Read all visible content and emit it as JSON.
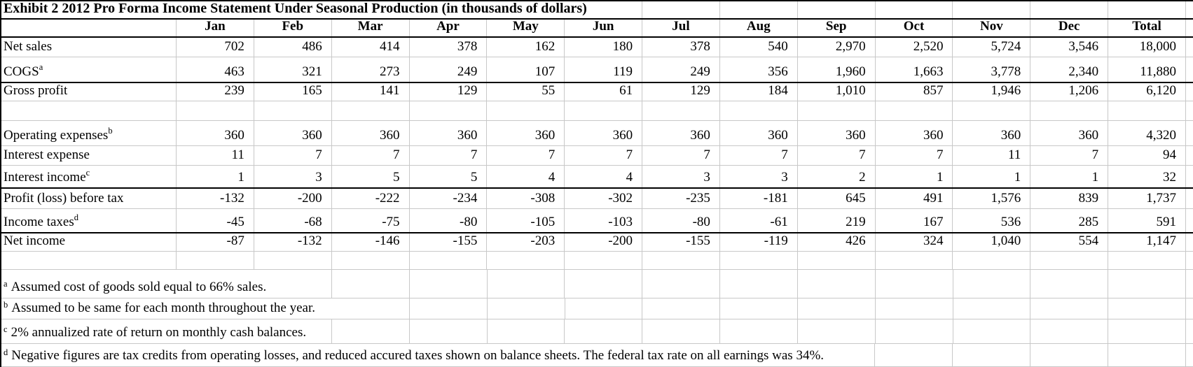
{
  "title": "Exhibit 2 2012 Pro Forma Income Statement Under Seasonal Production (in thousands of dollars)",
  "columns": [
    "Jan",
    "Feb",
    "Mar",
    "Apr",
    "May",
    "Jun",
    "Jul",
    "Aug",
    "Sep",
    "Oct",
    "Nov",
    "Dec",
    "Total"
  ],
  "rows": [
    {
      "label": "Net sales",
      "sup": "",
      "values": [
        "702",
        "486",
        "414",
        "378",
        "162",
        "180",
        "378",
        "540",
        "2,970",
        "2,520",
        "5,724",
        "3,546",
        "18,000"
      ]
    },
    {
      "label": "COGS",
      "sup": "a",
      "values": [
        "463",
        "321",
        "273",
        "249",
        "107",
        "119",
        "249",
        "356",
        "1,960",
        "1,663",
        "3,778",
        "2,340",
        "11,880"
      ]
    },
    {
      "label": "Gross profit",
      "sup": "",
      "values": [
        "239",
        "165",
        "141",
        "129",
        "55",
        "61",
        "129",
        "184",
        "1,010",
        "857",
        "1,946",
        "1,206",
        "6,120"
      ]
    },
    {
      "blank": true
    },
    {
      "label": "Operating expenses",
      "sup": "b",
      "values": [
        "360",
        "360",
        "360",
        "360",
        "360",
        "360",
        "360",
        "360",
        "360",
        "360",
        "360",
        "360",
        "4,320"
      ]
    },
    {
      "label": "Interest expense",
      "sup": "",
      "values": [
        "11",
        "7",
        "7",
        "7",
        "7",
        "7",
        "7",
        "7",
        "7",
        "7",
        "11",
        "7",
        "94"
      ]
    },
    {
      "label": "Interest income",
      "sup": "c",
      "values": [
        "1",
        "3",
        "5",
        "5",
        "4",
        "4",
        "3",
        "3",
        "2",
        "1",
        "1",
        "1",
        "32"
      ]
    },
    {
      "label": "Profit (loss) before tax",
      "sup": "",
      "values": [
        "-132",
        "-200",
        "-222",
        "-234",
        "-308",
        "-302",
        "-235",
        "-181",
        "645",
        "491",
        "1,576",
        "839",
        "1,737"
      ]
    },
    {
      "label": "Income taxes",
      "sup": "d",
      "values": [
        "-45",
        "-68",
        "-75",
        "-80",
        "-105",
        "-103",
        "-80",
        "-61",
        "219",
        "167",
        "536",
        "285",
        "591"
      ]
    },
    {
      "label": "Net income",
      "sup": "",
      "values": [
        "-87",
        "-132",
        "-146",
        "-155",
        "-203",
        "-200",
        "-155",
        "-119",
        "426",
        "324",
        "1,040",
        "554",
        "1,147"
      ]
    },
    {
      "blank": true
    }
  ],
  "footnotes": [
    {
      "marker": "a",
      "text": "Assumed cost of goods sold equal to 66% sales."
    },
    {
      "marker": "b",
      "text": "Assumed to be same for each month throughout the year."
    },
    {
      "marker": "c",
      "text": "2% annualized rate of return on monthly cash balances."
    },
    {
      "marker": "d",
      "text": "Negative figures are tax credits from operating losses, and reduced accured taxes shown on balance sheets. The federal tax rate on all earnings was 34%."
    }
  ],
  "colors": {
    "grid": "#c8c8c8",
    "border": "#000000",
    "background": "#ffffff",
    "text": "#000000"
  }
}
